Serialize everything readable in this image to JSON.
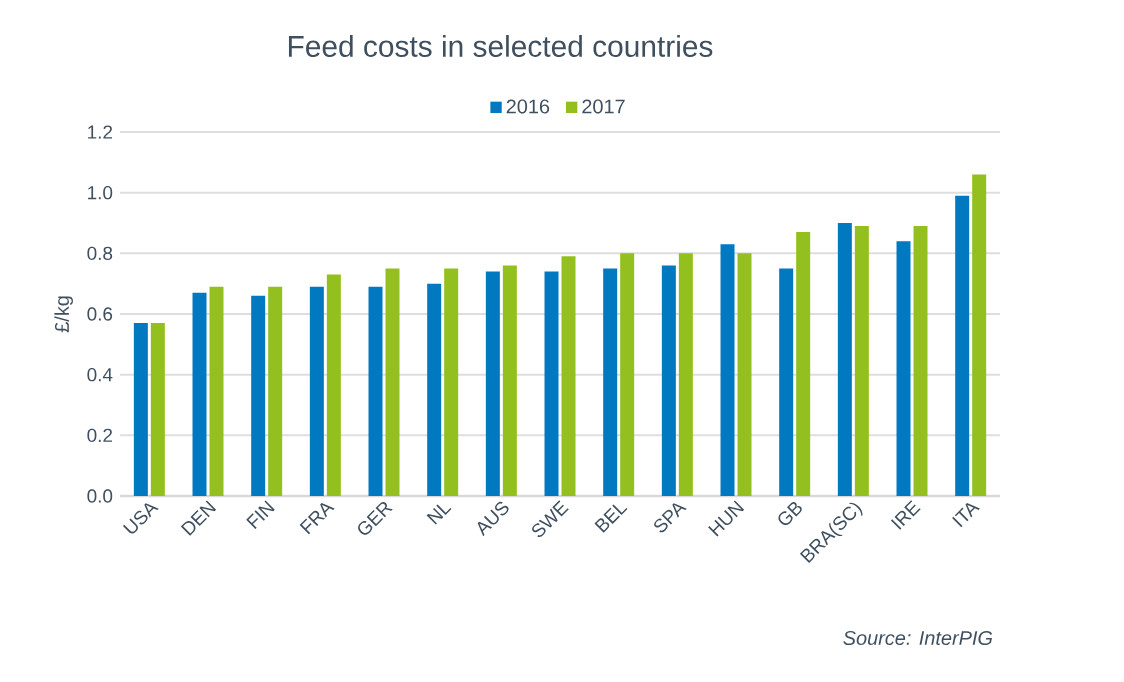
{
  "chart_data": {
    "type": "bar",
    "title": "Feed costs in selected countries",
    "ylabel": "£/kg",
    "categories": [
      "USA",
      "DEN",
      "FIN",
      "FRA",
      "GER",
      "NL",
      "AUS",
      "SWE",
      "BEL",
      "SPA",
      "HUN",
      "GB",
      "BRA(SC)",
      "IRE",
      "ITA"
    ],
    "series": [
      {
        "name": "2016",
        "color": "#0079c1",
        "values": [
          0.57,
          0.67,
          0.66,
          0.69,
          0.69,
          0.7,
          0.74,
          0.74,
          0.75,
          0.76,
          0.83,
          0.75,
          0.9,
          0.84,
          0.99
        ]
      },
      {
        "name": "2017",
        "color": "#93c01f",
        "values": [
          0.57,
          0.69,
          0.69,
          0.73,
          0.75,
          0.75,
          0.76,
          0.79,
          0.8,
          0.8,
          0.8,
          0.87,
          0.89,
          0.89,
          1.06
        ]
      }
    ],
    "ylim": [
      0,
      1.2
    ],
    "yticks": [
      {
        "value": 0,
        "label": "0.0"
      },
      {
        "value": 0.2,
        "label": "0.2"
      },
      {
        "value": 0.4,
        "label": "0.4"
      },
      {
        "value": 0.6,
        "label": "0.6"
      },
      {
        "value": 0.8,
        "label": "0.8"
      },
      {
        "value": 1.0,
        "label": "1.0"
      },
      {
        "value": 1.2,
        "label": "1.2"
      }
    ],
    "grid": "y",
    "legend": "top",
    "annotations": [
      "Source:  InterPIG"
    ]
  }
}
